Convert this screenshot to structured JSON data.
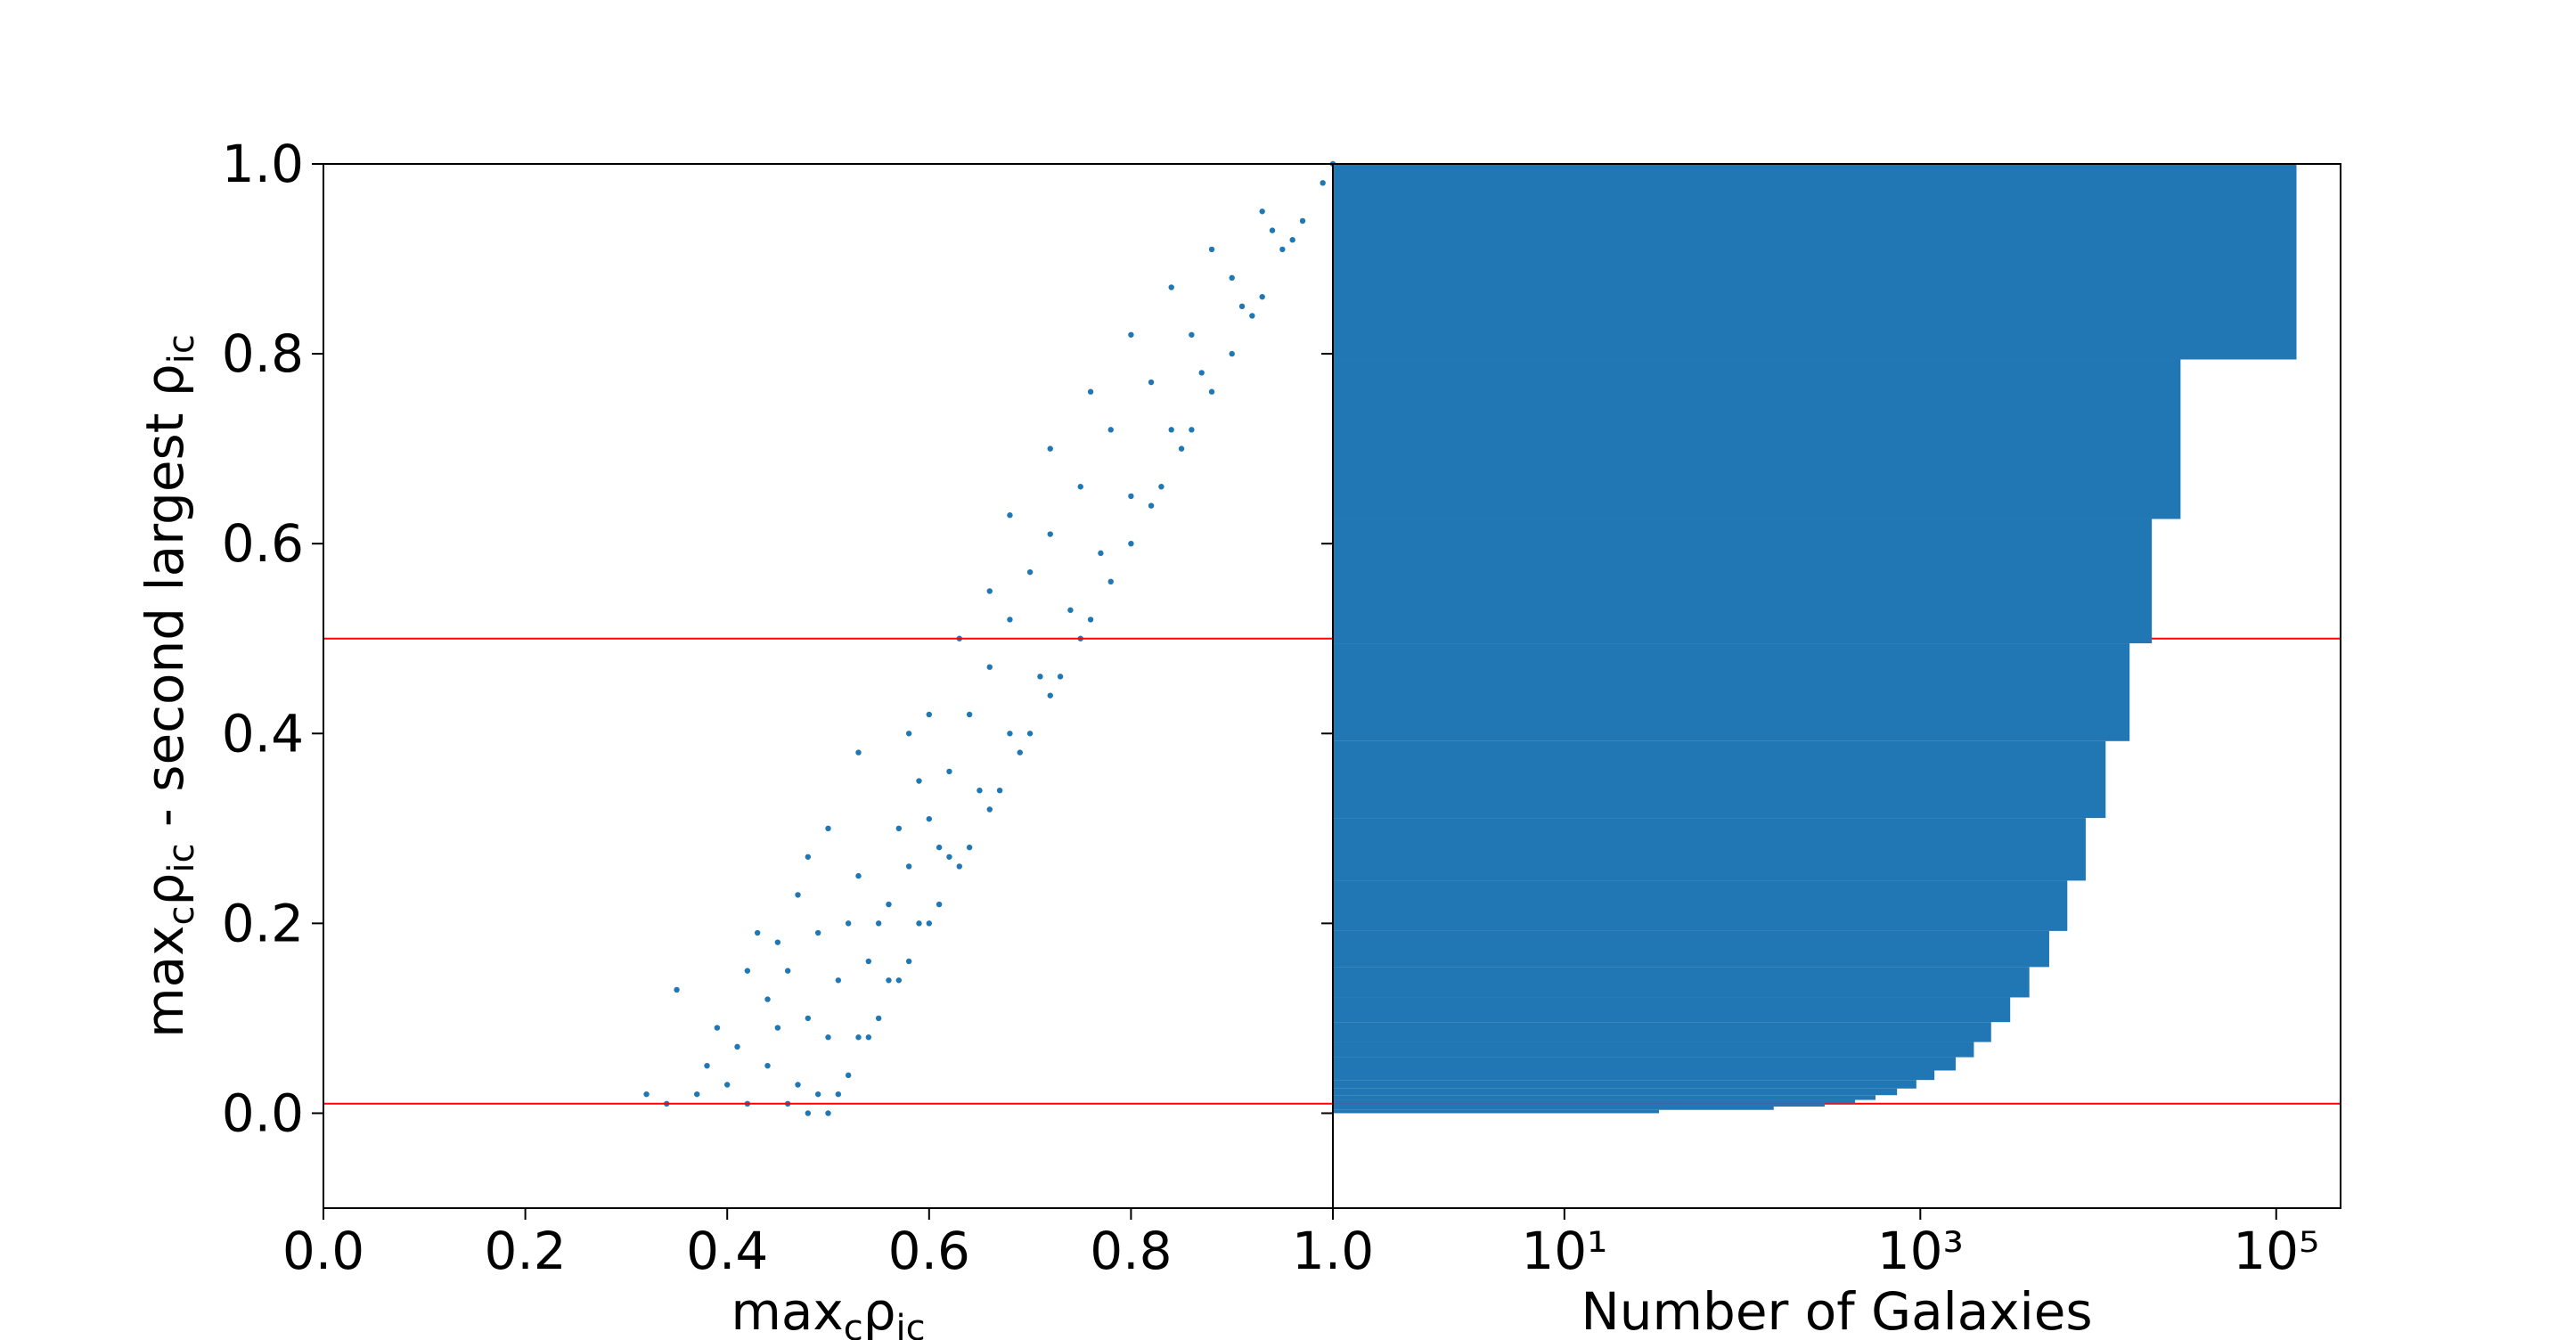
{
  "chart_data": [
    {
      "type": "scatter",
      "color": "#1f77b4",
      "xlabel": [
        {
          "text": "max"
        },
        {
          "text": "c",
          "sub": true
        },
        {
          "text": "ρ"
        },
        {
          "text": "ic",
          "sub": true
        }
      ],
      "ylabel": [
        {
          "text": "max"
        },
        {
          "text": "c",
          "sub": true
        },
        {
          "text": "ρ"
        },
        {
          "text": "ic",
          "sub": true
        },
        {
          "text": " - second largest "
        },
        {
          "text": "ρ"
        },
        {
          "text": "ic",
          "sub": true
        }
      ],
      "xlim": [
        0,
        1
      ],
      "ylim": [
        -0.1,
        1.0
      ],
      "xticks": [
        {
          "value": 0,
          "label": "0.0"
        },
        0.2,
        0.4,
        0.6,
        0.8,
        {
          "value": 1,
          "label": "1.0"
        }
      ],
      "yticks": [
        {
          "value": 0,
          "label": "0.0"
        },
        0.2,
        0.4,
        0.6,
        0.8,
        {
          "value": 1,
          "label": "1.0"
        }
      ],
      "hlines": [
        0.5,
        0.01
      ],
      "hline_color": "red",
      "x": [
        0.52,
        0.55,
        0.58,
        0.6,
        0.63,
        0.66,
        0.7,
        0.73,
        0.76,
        0.8,
        0.83,
        0.86,
        0.9,
        0.93,
        0.96,
        0.99,
        1.0,
        0.53,
        0.56,
        0.59,
        0.62,
        0.65,
        0.68,
        0.71,
        0.74,
        0.77,
        0.8,
        0.84,
        0.87,
        0.91,
        0.95,
        0.55,
        0.58,
        0.6,
        0.62,
        0.64,
        0.66,
        0.68,
        0.7,
        0.72,
        0.75,
        0.78,
        0.82,
        0.86,
        0.9,
        0.94,
        0.35,
        0.43,
        0.47,
        0.48,
        0.5,
        0.53,
        0.58,
        0.6,
        0.63,
        0.66,
        0.68,
        0.72,
        0.76,
        0.8,
        0.84,
        0.88,
        0.93,
        0.32,
        0.34,
        0.37,
        0.38,
        0.4,
        0.41,
        0.42,
        0.44,
        0.45,
        0.46,
        0.47,
        0.48,
        0.49,
        0.5,
        0.44,
        0.46,
        0.48,
        0.5,
        0.51,
        0.52,
        0.53,
        0.54,
        0.56,
        0.57,
        0.59,
        0.61,
        0.39,
        0.42,
        0.45,
        0.49,
        0.51,
        0.54,
        0.57,
        0.61,
        0.64,
        0.67,
        0.69,
        0.72,
        0.75,
        0.78,
        0.82,
        0.85,
        0.88,
        0.92,
        0.97
      ],
      "values": [
        0.04,
        0.1,
        0.16,
        0.2,
        0.26,
        0.32,
        0.4,
        0.46,
        0.52,
        0.6,
        0.66,
        0.72,
        0.8,
        0.86,
        0.92,
        0.98,
        1.0,
        0.08,
        0.14,
        0.2,
        0.27,
        0.34,
        0.4,
        0.46,
        0.53,
        0.59,
        0.65,
        0.72,
        0.78,
        0.85,
        0.91,
        0.2,
        0.26,
        0.31,
        0.36,
        0.42,
        0.47,
        0.52,
        0.57,
        0.61,
        0.66,
        0.72,
        0.77,
        0.82,
        0.88,
        0.93,
        0.13,
        0.19,
        0.23,
        0.27,
        0.3,
        0.38,
        0.4,
        0.42,
        0.5,
        0.55,
        0.63,
        0.7,
        0.76,
        0.82,
        0.87,
        0.91,
        0.95,
        0.02,
        0.01,
        0.02,
        0.05,
        0.03,
        0.07,
        0.01,
        0.05,
        0.09,
        0.01,
        0.03,
        0.0,
        0.02,
        0.0,
        0.12,
        0.15,
        0.1,
        0.08,
        0.14,
        0.2,
        0.25,
        0.16,
        0.22,
        0.3,
        0.35,
        0.28,
        0.09,
        0.15,
        0.18,
        0.19,
        0.02,
        0.08,
        0.14,
        0.22,
        0.28,
        0.34,
        0.38,
        0.44,
        0.5,
        0.56,
        0.64,
        0.7,
        0.76,
        0.84,
        0.94
      ]
    },
    {
      "type": "histogram",
      "orientation": "horizontal",
      "color": "#2077b4",
      "log": true,
      "xlabel": "Number of Galaxies",
      "xlim": [
        0.5,
        230000
      ],
      "ylim": [
        -0.1,
        1.0
      ],
      "xticks": [
        {
          "value": 10,
          "label": "10¹"
        },
        {
          "value": 1000,
          "label": "10³"
        },
        {
          "value": 100000,
          "label": "10⁵"
        }
      ],
      "bins": [
        0,
        0.0035,
        0.007,
        0.0105,
        0.014,
        0.019,
        0.026,
        0.035,
        0.045,
        0.059,
        0.075,
        0.096,
        0.122,
        0.154,
        0.192,
        0.245,
        0.311,
        0.392,
        0.495,
        0.626,
        0.794,
        1.0
      ],
      "values": [
        34,
        150,
        290,
        430,
        560,
        740,
        950,
        1200,
        1580,
        2000,
        2500,
        3200,
        4100,
        5300,
        6700,
        8500,
        11000,
        15000,
        20000,
        29000,
        130000
      ]
    }
  ]
}
